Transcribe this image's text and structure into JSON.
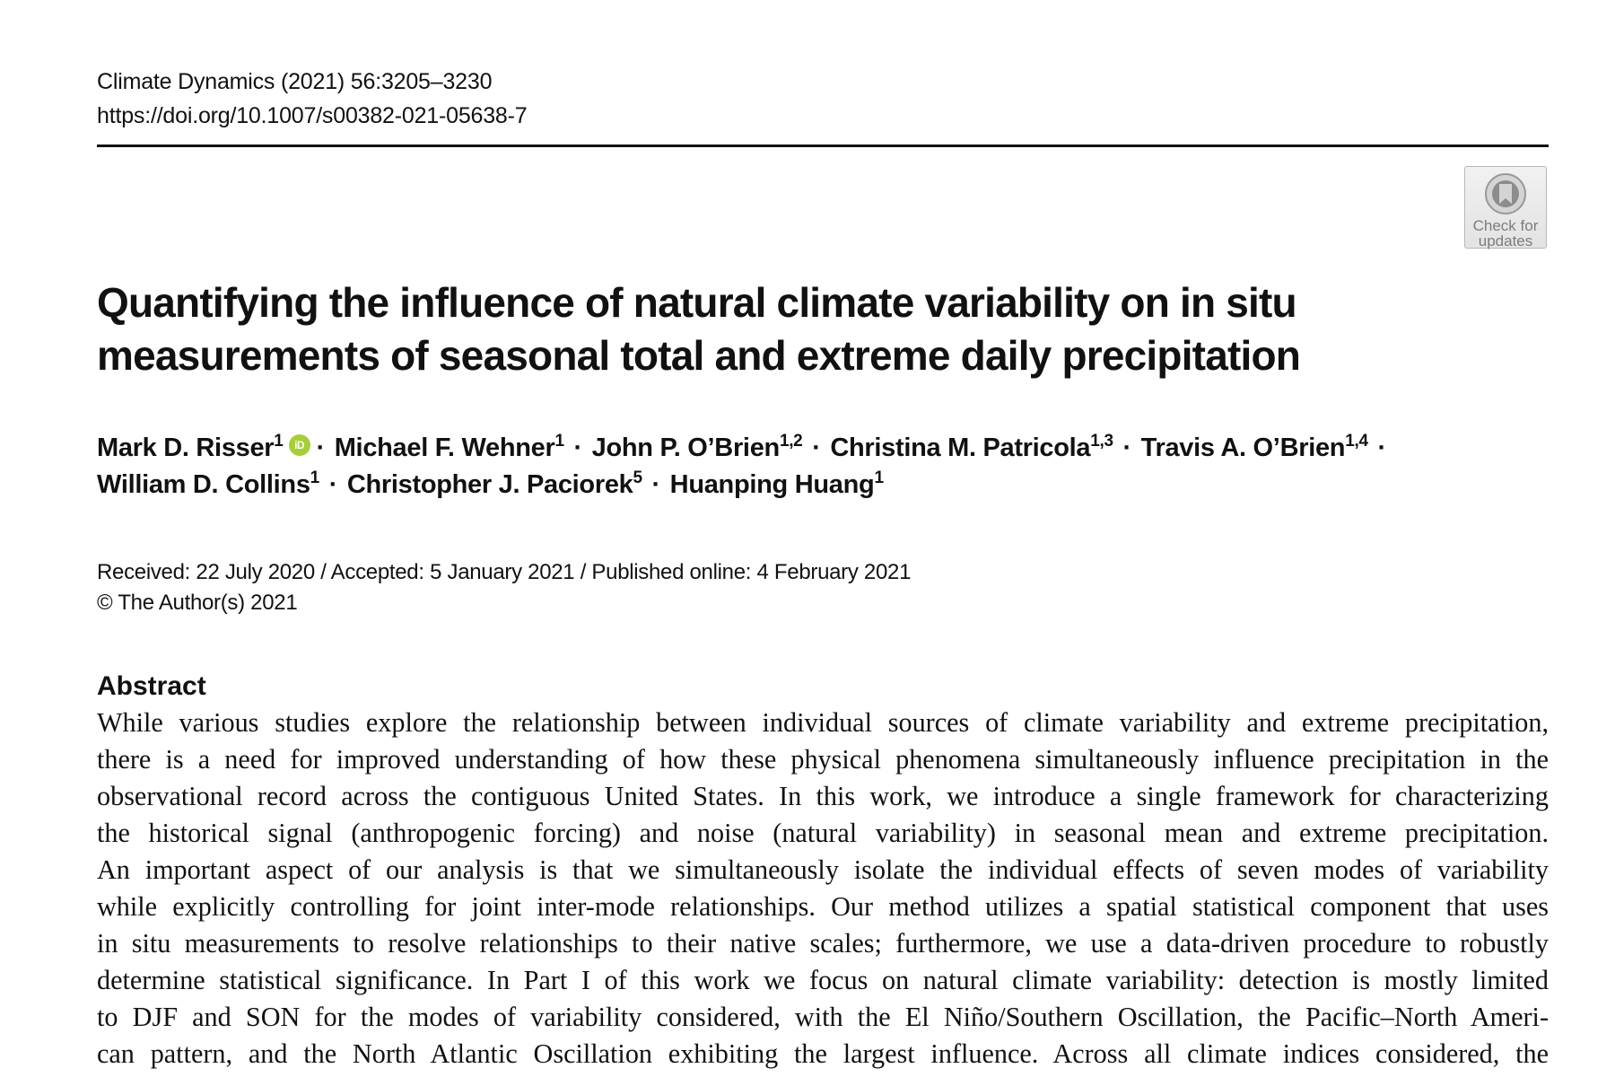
{
  "header": {
    "journal_citation": "Climate Dynamics (2021) 56:3205–3230",
    "doi": "https://doi.org/10.1007/s00382-021-05638-7"
  },
  "check_for_updates": {
    "label_line1": "Check for",
    "label_line2": "updates",
    "icon": "crossmark-icon"
  },
  "title": {
    "line1": "Quantifying the influence of natural climate variability on in situ",
    "line2": "measurements of seasonal total and extreme daily precipitation"
  },
  "authors": [
    {
      "name": "Mark D. Risser",
      "affil": "1",
      "orcid": true
    },
    {
      "name": "Michael F. Wehner",
      "affil": "1"
    },
    {
      "name": "John P. O’Brien",
      "affil": "1,2"
    },
    {
      "name": "Christina M. Patricola",
      "affil": "1,3"
    },
    {
      "name": "Travis A. O’Brien",
      "affil": "1,4"
    },
    {
      "name": "William D. Collins",
      "affil": "1"
    },
    {
      "name": "Christopher J. Paciorek",
      "affil": "5"
    },
    {
      "name": "Huanping Huang",
      "affil": "1"
    }
  ],
  "orcid_icon_label": "iD",
  "separator": "·",
  "dates": {
    "history": "Received: 22 July 2020 / Accepted: 5 January 2021 / Published online: 4 February 2021",
    "copyright": "© The Author(s) 2021"
  },
  "abstract": {
    "heading": "Abstract",
    "lines": [
      "While various studies explore the relationship between individual sources of climate variability and extreme precipitation,",
      "there is a need for improved understanding of how these physical phenomena simultaneously influence precipitation in the",
      "observational record across the contiguous United States. In this work, we introduce a single framework for characterizing",
      "the historical signal (anthropogenic forcing) and noise (natural variability) in seasonal mean and extreme precipitation.",
      "An important aspect of our analysis is that we simultaneously isolate the individual effects of seven modes of variability",
      "while explicitly controlling for joint inter-mode relationships. Our method utilizes a spatial statistical component that uses",
      "in situ measurements to resolve relationships to their native scales; furthermore, we use a data-driven procedure to robustly",
      "determine statistical significance. In Part I of this work we focus on natural climate variability: detection is mostly limited",
      "to DJF and SON for the modes of variability considered, with the El Niño/Southern Oscillation, the Pacific–North Ameri-",
      "can pattern, and the North Atlantic Oscillation exhibiting the largest influence. Across all climate indices considered, the"
    ]
  }
}
